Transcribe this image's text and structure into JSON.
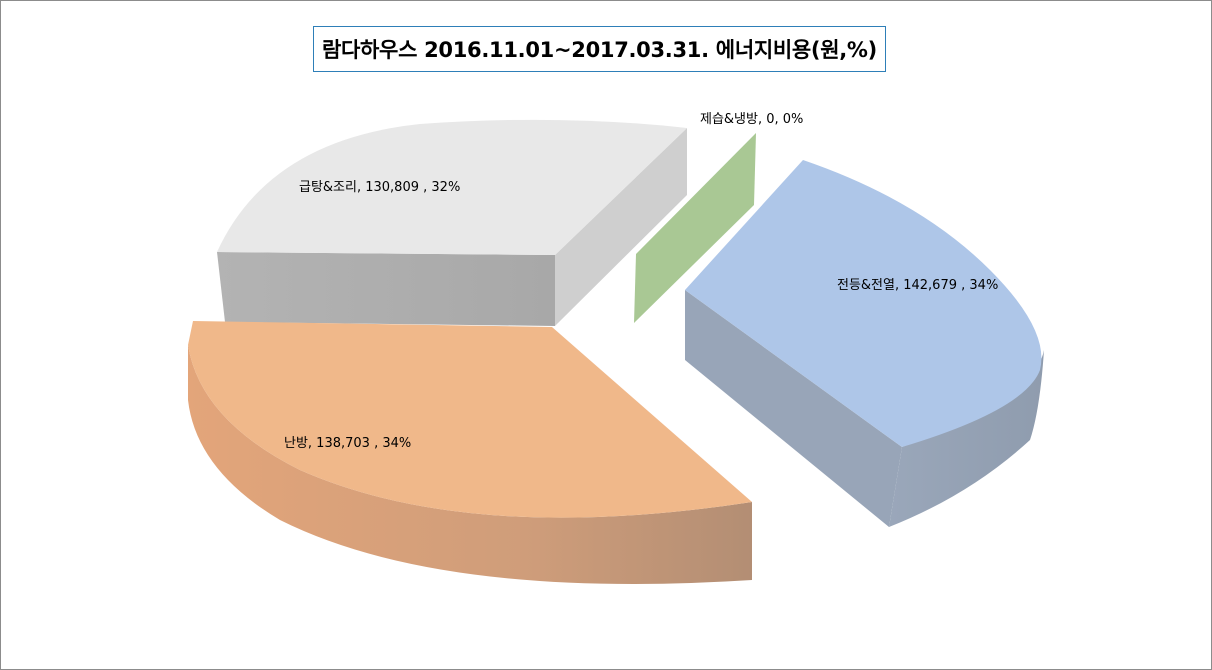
{
  "chart_data": {
    "type": "pie",
    "title": "람다하우스 2016.11.01~2017.03.31. 에너지비용(원,%)",
    "three_d": true,
    "exploded": true,
    "slices": [
      {
        "name": "전등&전열",
        "value": 142679,
        "percent": "34%",
        "label": "전등&전열, 142,679 , 34%",
        "color": "#aec6e8"
      },
      {
        "name": "제습&냉방",
        "value": 0,
        "percent": "0%",
        "label": "제습&냉방, 0, 0%",
        "color": "#a9c894"
      },
      {
        "name": "급탕&조리",
        "value": 130809,
        "percent": "32%",
        "label": "급탕&조리, 130,809 , 32%",
        "color": "#e8e8e8"
      },
      {
        "name": "난방",
        "value": 138703,
        "percent": "34%",
        "label": "난방, 138,703 , 34%",
        "color": "#f0b88a"
      }
    ]
  }
}
